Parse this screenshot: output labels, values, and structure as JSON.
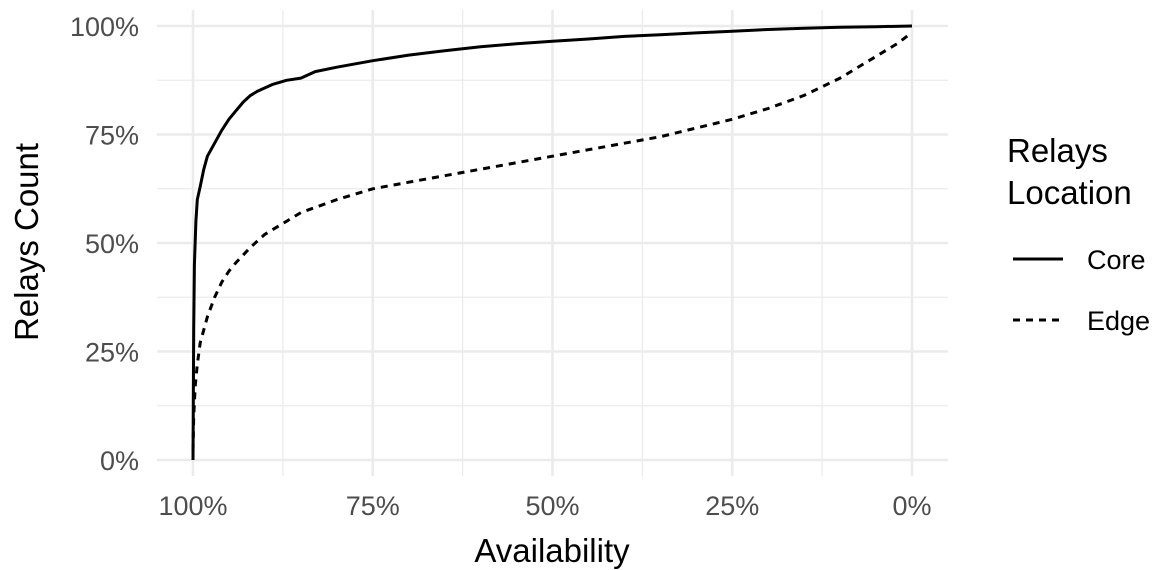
{
  "chart_data": {
    "type": "line",
    "title": "",
    "xlabel": "Availability",
    "ylabel": "Relays Count",
    "xlim": [
      100,
      0
    ],
    "ylim": [
      0,
      100
    ],
    "x_reversed": true,
    "x_ticks": [
      {
        "value": 100,
        "label": "100%"
      },
      {
        "value": 75,
        "label": "75%"
      },
      {
        "value": 50,
        "label": "50%"
      },
      {
        "value": 25,
        "label": "25%"
      },
      {
        "value": 0,
        "label": "0%"
      }
    ],
    "y_ticks": [
      {
        "value": 0,
        "label": "0%"
      },
      {
        "value": 25,
        "label": "25%"
      },
      {
        "value": 50,
        "label": "50%"
      },
      {
        "value": 75,
        "label": "75%"
      },
      {
        "value": 100,
        "label": "100%"
      }
    ],
    "grid": true,
    "legend": {
      "title_lines": [
        "Relays",
        "Location"
      ],
      "placement": "right"
    },
    "series": [
      {
        "name": "Core",
        "style": "solid",
        "color": "#000000",
        "x": [
          100,
          99.9,
          99.8,
          99.6,
          99.4,
          99,
          98.5,
          98,
          97,
          96,
          95,
          94,
          93,
          92,
          91,
          89,
          87,
          85,
          83,
          80,
          75,
          70,
          65,
          60,
          55,
          50,
          45,
          40,
          35,
          30,
          25,
          20,
          15,
          10,
          5,
          0
        ],
        "y": [
          0,
          30,
          45,
          55,
          60,
          63,
          67,
          70,
          73,
          76,
          78.5,
          80.5,
          82.5,
          84,
          85,
          86.5,
          87.5,
          88,
          89.5,
          90.5,
          92,
          93.3,
          94.3,
          95.2,
          95.9,
          96.5,
          97,
          97.6,
          98,
          98.4,
          98.8,
          99.2,
          99.5,
          99.7,
          99.85,
          100
        ]
      },
      {
        "name": "Edge",
        "style": "dashed",
        "color": "#000000",
        "x": [
          100,
          99.9,
          99.7,
          99.4,
          99,
          98,
          97,
          96,
          95,
          94,
          92,
          90,
          87,
          85,
          80,
          75,
          70,
          65,
          60,
          55,
          50,
          45,
          40,
          35,
          30,
          25,
          20,
          15,
          10,
          5,
          2,
          0
        ],
        "y": [
          2,
          10,
          17,
          22,
          27,
          33,
          37.5,
          41,
          43.5,
          45.5,
          49,
          52,
          55,
          57,
          60,
          62.5,
          64,
          65.5,
          67,
          68.5,
          70,
          71.5,
          73,
          74.5,
          76.5,
          78.5,
          81,
          84,
          88,
          93,
          96,
          98.5
        ]
      }
    ]
  }
}
